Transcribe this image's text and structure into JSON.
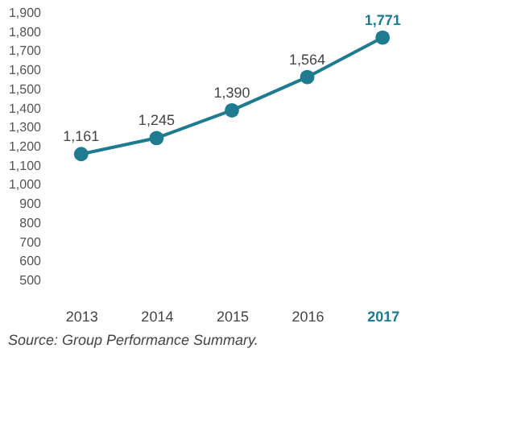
{
  "chart_data": {
    "type": "line",
    "categories": [
      "2013",
      "2014",
      "2015",
      "2016",
      "2017"
    ],
    "series": [
      {
        "color": "#1e7b90",
        "values": [
          1161,
          1245,
          1390,
          1564,
          1771
        ],
        "value_labels": [
          "1,161",
          "1,245",
          "1,390",
          "1,564",
          "1,771"
        ]
      }
    ],
    "ylim": [
      500,
      1900
    ],
    "yticks": [
      500,
      600,
      700,
      800,
      900,
      {
        "value": 1000,
        "label": "1,000"
      },
      {
        "value": 1100,
        "label": "1,100"
      },
      {
        "value": 1200,
        "label": "1,200"
      },
      {
        "value": 1300,
        "label": "1,300"
      },
      {
        "value": 1400,
        "label": "1,400"
      },
      {
        "value": 1500,
        "label": "1,500"
      },
      {
        "value": 1600,
        "label": "1,600"
      },
      {
        "value": 1700,
        "label": "1,700"
      },
      {
        "value": 1800,
        "label": "1,800"
      },
      {
        "value": 1900,
        "label": "1,900"
      }
    ],
    "marker": "circle",
    "grid": false,
    "annotations": [
      "Source: Group Performance Summary."
    ]
  }
}
